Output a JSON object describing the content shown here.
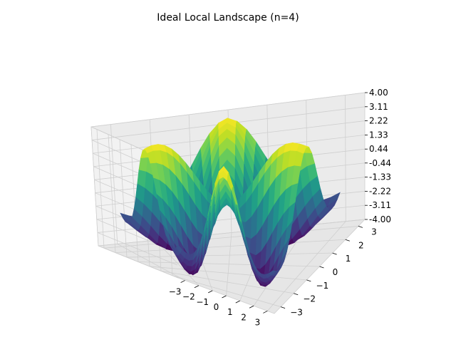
{
  "chart_data": {
    "type": "surface3d",
    "title": "Ideal Local Landscape (n=4)",
    "xlim": [
      -3.5,
      3.5
    ],
    "ylim": [
      -3.5,
      3.5
    ],
    "zlim": [
      -4.0,
      4.0
    ],
    "x_ticks": [
      "−3",
      "−2",
      "−1",
      "0",
      "1",
      "2",
      "3"
    ],
    "x_tick_values": [
      -3,
      -2,
      -1,
      0,
      1,
      2,
      3
    ],
    "y_ticks": [
      "−3",
      "−2",
      "−1",
      "0",
      "1",
      "2",
      "3"
    ],
    "y_tick_values": [
      -3,
      -2,
      -1,
      0,
      1,
      2,
      3
    ],
    "z_ticks": [
      "-4.00",
      "-3.11",
      "-2.22",
      "-1.33",
      "-0.44",
      "0.44",
      "1.33",
      "2.22",
      "3.11",
      "4.00"
    ],
    "z_tick_values": [
      -4.0,
      -3.11,
      -2.22,
      -1.33,
      -0.44,
      0.44,
      1.33,
      2.22,
      3.11,
      4.0
    ],
    "colormap": "viridis",
    "surface": "z = 4·cos(4·atan2(y, x))·(r/2.5)²·exp(1−(r/2.5)²), r = √(x²+y²)",
    "grid": true,
    "pane_color": "#f2f2f2",
    "grid_color": "#d0d0d0"
  }
}
